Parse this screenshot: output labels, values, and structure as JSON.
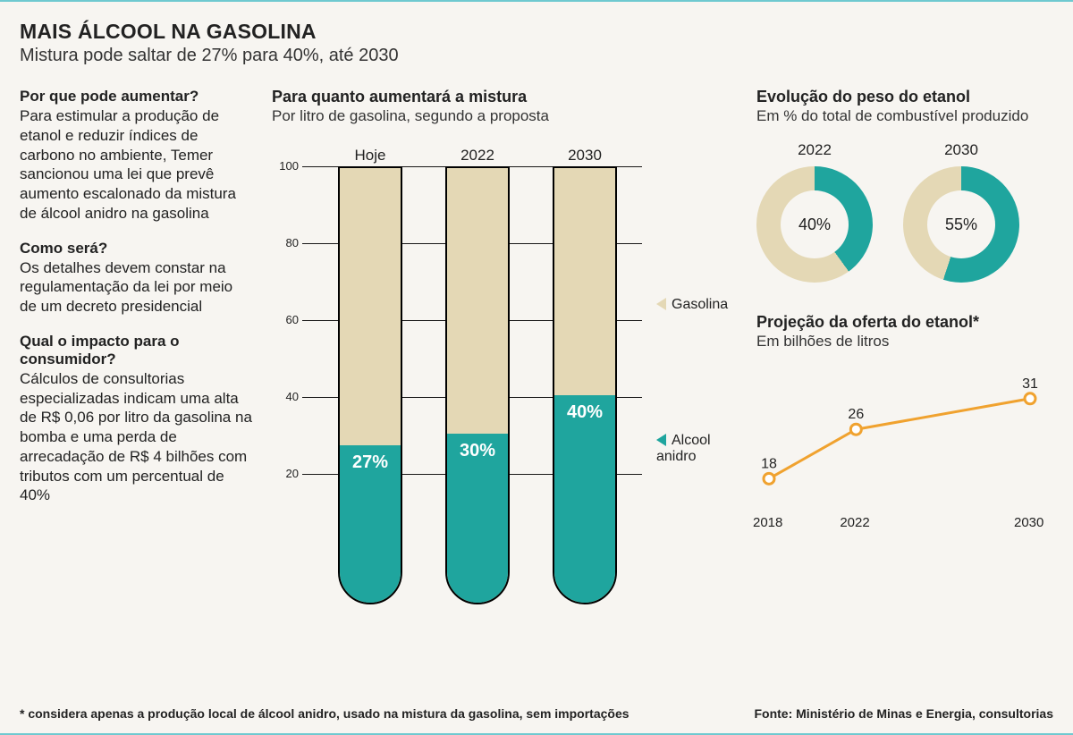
{
  "colors": {
    "rule": "#6fc9d0",
    "gasolina": "#e4d8b5",
    "alcool": "#1fa59e",
    "line": "#f0a22f",
    "text": "#222222",
    "bg": "#f7f5f1"
  },
  "headline": "MAIS ÁLCOOL NA GASOLINA",
  "subhead": "Mistura pode saltar de 27% para 40%, até 2030",
  "qa": [
    {
      "q": "Por que pode aumentar?",
      "a": "Para estimular a produção de etanol e reduzir índices de carbono no ambiente, Temer sancionou uma lei que prevê aumento escalonado da mistura de álcool anidro na gasolina"
    },
    {
      "q": "Como será?",
      "a": "Os detalhes devem constar na regulamentação da lei por meio de um decreto presidencial"
    },
    {
      "q": "Qual o impacto para o consumidor?",
      "a": "Cálculos de consultorias especializadas indicam uma alta de R$ 0,06 por litro da gasolina na bomba e uma perda de arrecadação de R$ 4 bilhões com tributos com um percentual de 40%"
    }
  ],
  "tubes": {
    "title": "Para quanto aumentará a mistura",
    "sub": "Por litro de gasolina, segundo a proposta",
    "yticks": [
      100,
      80,
      60,
      40,
      20
    ],
    "ymax": 100,
    "ymin": 0,
    "bars": [
      {
        "label": "Hoje",
        "pct": 27,
        "pct_label": "27%"
      },
      {
        "label": "2022",
        "pct": 30,
        "pct_label": "30%"
      },
      {
        "label": "2030",
        "pct": 40,
        "pct_label": "40%"
      }
    ],
    "legend_gas": "Gasolina",
    "legend_alc": "Alcool anidro"
  },
  "donuts": {
    "title": "Evolução do peso do etanol",
    "sub": "Em % do total de combustível produzido",
    "items": [
      {
        "year": "2022",
        "etanol_pct": 40,
        "label": "40%"
      },
      {
        "year": "2030",
        "etanol_pct": 55,
        "label": "55%"
      }
    ]
  },
  "line": {
    "title": "Projeção da oferta do etanol*",
    "sub": "Em bilhões de litros",
    "points": [
      {
        "x": "2018",
        "y": 18,
        "y_label": "18"
      },
      {
        "x": "2022",
        "y": 26,
        "y_label": "26"
      },
      {
        "x": "2030",
        "y": 31,
        "y_label": "31"
      }
    ],
    "line_color": "#f0a22f",
    "marker_fill": "#ffffff",
    "ymin": 15,
    "ymax": 33
  },
  "footnote": "* considera apenas a produção local de álcool anidro, usado na mistura da gasolina, sem importações",
  "source": "Fonte: Ministério de Minas e Energia, consultorias"
}
